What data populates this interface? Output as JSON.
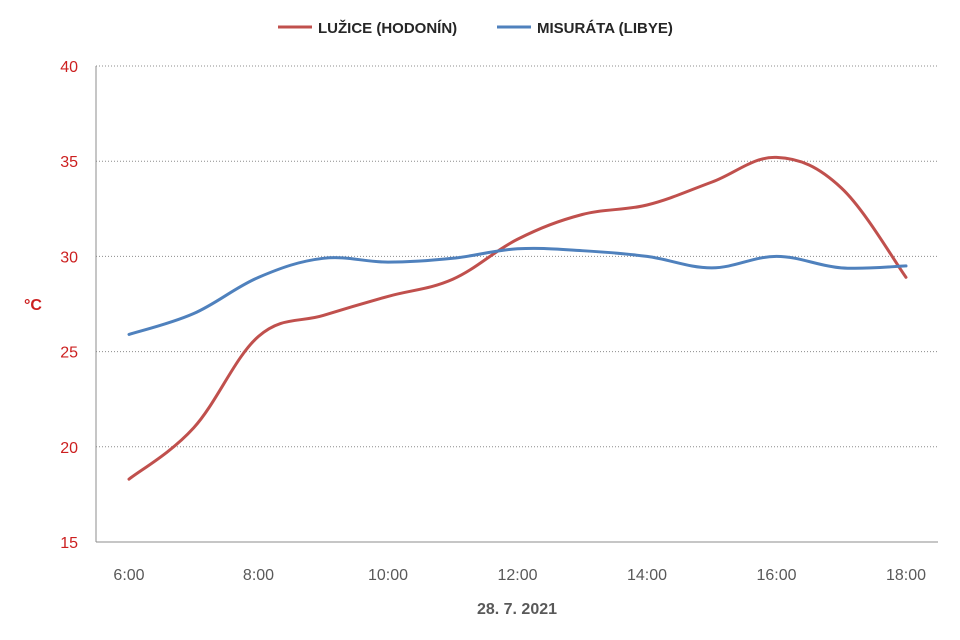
{
  "chart_data": {
    "type": "line",
    "x": [
      "6:00",
      "7:00",
      "8:00",
      "9:00",
      "10:00",
      "11:00",
      "12:00",
      "13:00",
      "14:00",
      "15:00",
      "16:00",
      "17:00",
      "18:00"
    ],
    "x_tick_labels": [
      "6:00",
      "8:00",
      "10:00",
      "12:00",
      "14:00",
      "16:00",
      "18:00"
    ],
    "series": [
      {
        "name": "LUŽICE (HODONÍN)",
        "color": "#c0504d",
        "values": [
          18.3,
          21.0,
          25.8,
          26.9,
          27.9,
          28.8,
          30.9,
          32.2,
          32.7,
          33.9,
          35.2,
          33.6,
          28.9
        ]
      },
      {
        "name": "MISURÁTA (LIBYE)",
        "color": "#4f81bd",
        "values": [
          25.9,
          27.0,
          28.9,
          29.9,
          29.7,
          29.9,
          30.4,
          30.3,
          30.0,
          29.4,
          30.0,
          29.4,
          29.5
        ]
      }
    ],
    "title": "",
    "xlabel": "28. 7. 2021",
    "ylabel": "°C",
    "ylim": [
      15,
      40
    ],
    "yticks": [
      15,
      20,
      25,
      30,
      35,
      40
    ],
    "grid": true,
    "legend_position": "top-center",
    "colors": {
      "y_axis_text": "#cc1f1f",
      "x_axis_text": "#595959",
      "gridline": "#8c8c8c"
    }
  }
}
